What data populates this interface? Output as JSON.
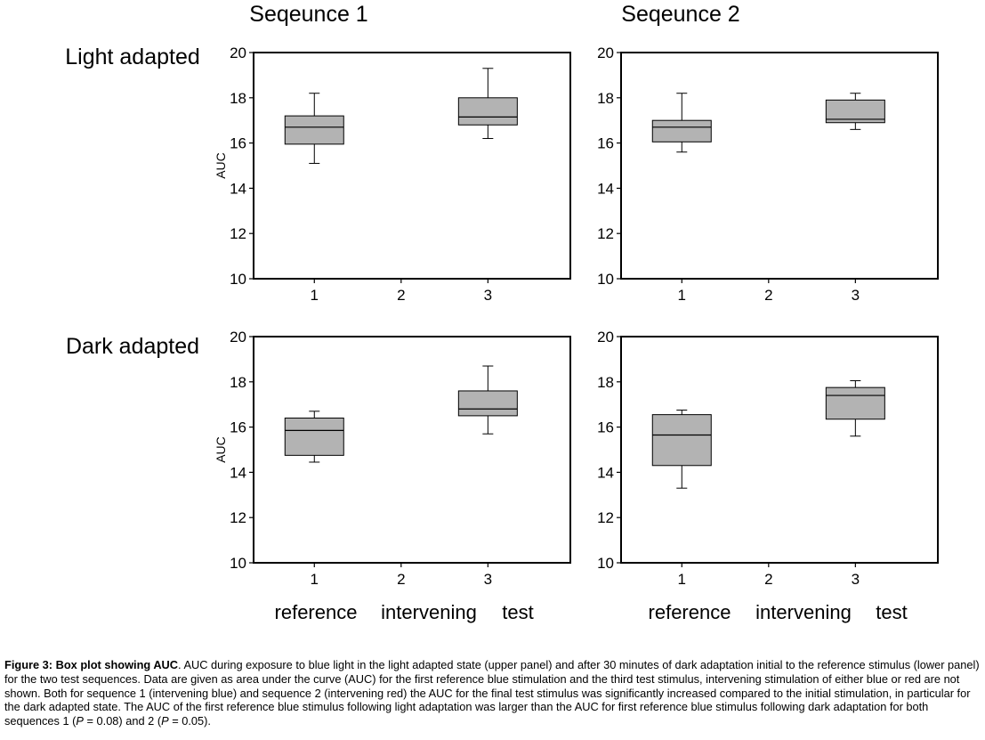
{
  "column_titles": [
    "Seqeunce 1",
    "Seqeunce 2"
  ],
  "row_titles": [
    "Light adapted",
    "Dark adapted"
  ],
  "category_names": [
    "reference",
    "intervening",
    "test"
  ],
  "chart_data": [
    {
      "type": "box",
      "title": "Seqeunce 1",
      "row": "Light adapted",
      "ylabel": "AUC",
      "xlabel": "",
      "ylim": [
        10,
        20
      ],
      "yticks": [
        10,
        12,
        14,
        16,
        18,
        20
      ],
      "xticks": [
        1,
        2,
        3
      ],
      "xlim": [
        0.3,
        3.95
      ],
      "grid": false,
      "boxes": [
        {
          "x": 1,
          "min": 15.1,
          "q1": 15.95,
          "median": 16.7,
          "q3": 17.2,
          "max": 18.2
        },
        {
          "x": 3,
          "min": 16.2,
          "q1": 16.8,
          "median": 17.15,
          "q3": 18.0,
          "max": 19.3
        }
      ]
    },
    {
      "type": "box",
      "title": "Seqeunce 2",
      "row": "Light adapted",
      "ylabel": "",
      "xlabel": "",
      "ylim": [
        10,
        20
      ],
      "yticks": [
        10,
        12,
        14,
        16,
        18,
        20
      ],
      "xticks": [
        1,
        2,
        3
      ],
      "xlim": [
        0.3,
        3.95
      ],
      "grid": false,
      "boxes": [
        {
          "x": 1,
          "min": 15.6,
          "q1": 16.05,
          "median": 16.7,
          "q3": 17.0,
          "max": 18.2
        },
        {
          "x": 3,
          "min": 16.6,
          "q1": 16.9,
          "median": 17.05,
          "q3": 17.9,
          "max": 18.2
        }
      ]
    },
    {
      "type": "box",
      "title": "Seqeunce 1",
      "row": "Dark adapted",
      "ylabel": "AUC",
      "xlabel": "",
      "ylim": [
        10,
        20
      ],
      "yticks": [
        10,
        12,
        14,
        16,
        18,
        20
      ],
      "xticks": [
        1,
        2,
        3
      ],
      "xlim": [
        0.3,
        3.95
      ],
      "grid": false,
      "boxes": [
        {
          "x": 1,
          "min": 14.45,
          "q1": 14.75,
          "median": 15.85,
          "q3": 16.4,
          "max": 16.7
        },
        {
          "x": 3,
          "min": 15.7,
          "q1": 16.5,
          "median": 16.8,
          "q3": 17.6,
          "max": 18.7
        }
      ]
    },
    {
      "type": "box",
      "title": "Seqeunce 2",
      "row": "Dark adapted",
      "ylabel": "",
      "xlabel": "",
      "ylim": [
        10,
        20
      ],
      "yticks": [
        10,
        12,
        14,
        16,
        18,
        20
      ],
      "xticks": [
        1,
        2,
        3
      ],
      "xlim": [
        0.3,
        3.95
      ],
      "grid": false,
      "boxes": [
        {
          "x": 1,
          "min": 13.3,
          "q1": 14.3,
          "median": 15.65,
          "q3": 16.55,
          "max": 16.75
        },
        {
          "x": 3,
          "min": 15.6,
          "q1": 16.35,
          "median": 17.4,
          "q3": 17.75,
          "max": 18.05
        }
      ]
    }
  ],
  "caption": {
    "label": "Figure 3:",
    "title": "Box plot showing AUC",
    "text1": ". AUC during exposure to blue light in the light adapted state (upper panel) and after 30 minutes of dark adaptation initial to the reference stimulus (lower panel) for the two test sequences. Data are given as area under the curve (AUC) for the first reference blue stimulation and the third test stimulus, intervening stimulation of either blue or red are not shown. Both for sequence 1 (intervening blue) and sequence 2 (intervening red) the AUC for the final test stimulus was significantly increased compared to the initial stimulation, in particular for the dark adapted state. The AUC of the first reference blue stimulus following light adaptation was larger than the AUC for first reference blue stimulus following dark adaptation for both sequences 1 (",
    "p1_sym": "P",
    "p1_val": " = 0.08) and 2 (",
    "p2_sym": "P",
    "p2_val": " = 0.05)."
  },
  "colors": {
    "box_fill": "#b3b3b3",
    "line": "#000000",
    "background": "#ffffff"
  }
}
